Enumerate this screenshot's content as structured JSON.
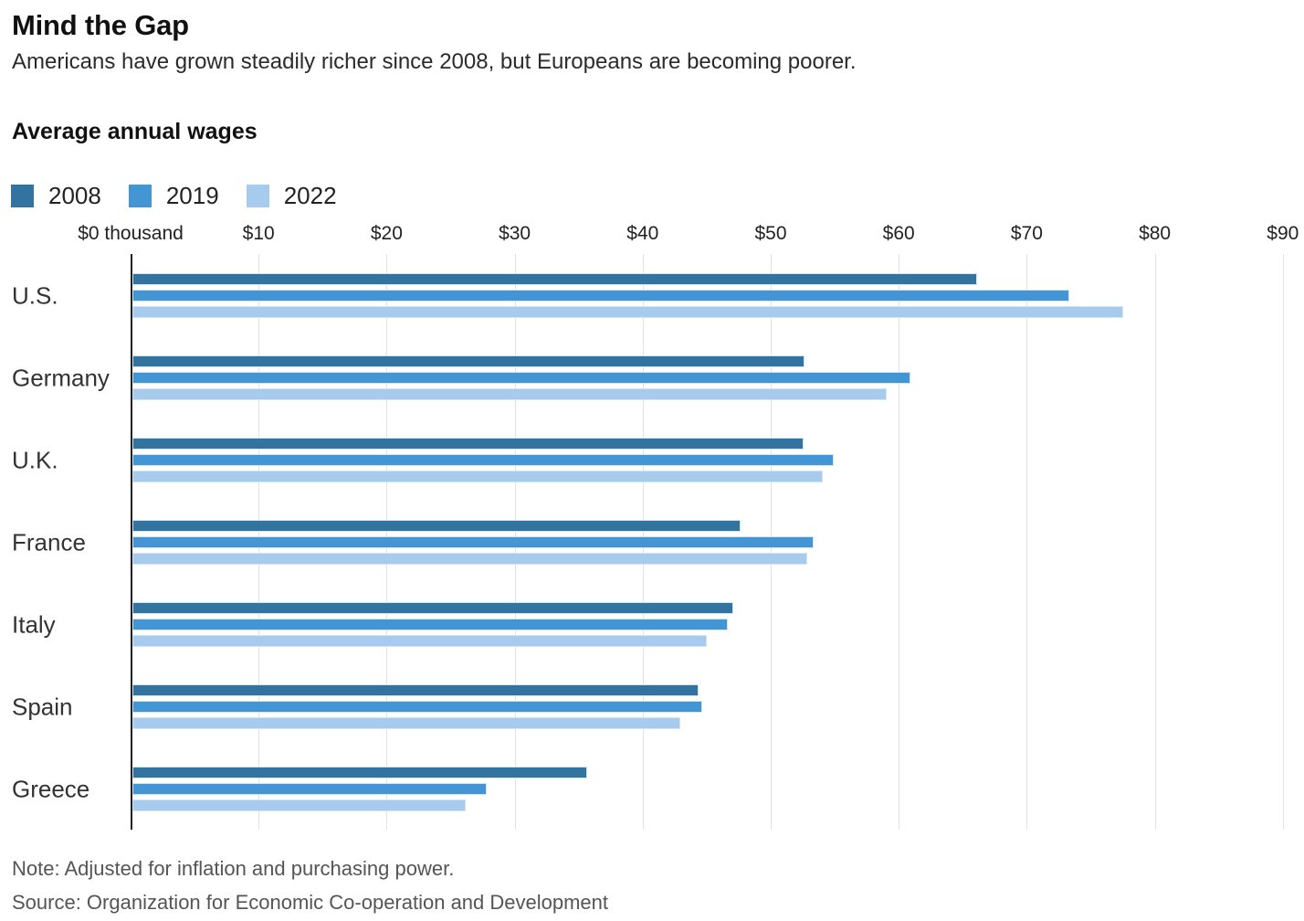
{
  "header": {
    "title": "Mind the Gap",
    "subtitle": "Americans have grown steadily richer since 2008, but Europeans are becoming poorer."
  },
  "section_label": "Average annual wages",
  "colors": {
    "series_2008": "#33739f",
    "series_2019": "#4495d3",
    "series_2022": "#a6cbec",
    "gridline": "#e2e2e2",
    "axis": "#222222"
  },
  "chart_data": {
    "type": "bar",
    "orientation": "horizontal",
    "title": "Average annual wages",
    "unit": "thousand US dollars",
    "categories": [
      "U.S.",
      "Germany",
      "U.K.",
      "France",
      "Italy",
      "Spain",
      "Greece"
    ],
    "series": [
      {
        "name": "2008",
        "color": "#33739f",
        "values": [
          66.0,
          52.5,
          52.4,
          47.5,
          46.9,
          44.2,
          35.5
        ]
      },
      {
        "name": "2019",
        "color": "#4495d3",
        "values": [
          73.2,
          60.8,
          54.8,
          53.2,
          46.5,
          44.5,
          27.7
        ]
      },
      {
        "name": "2022",
        "color": "#a6cbec",
        "values": [
          77.4,
          58.9,
          53.9,
          52.7,
          44.9,
          42.8,
          26.0
        ]
      }
    ],
    "x_axis": {
      "tick_labels": [
        "$0 thousand",
        "$10",
        "$20",
        "$30",
        "$40",
        "$50",
        "$60",
        "$70",
        "$80",
        "$90"
      ],
      "tick_values": [
        0,
        10,
        20,
        30,
        40,
        50,
        60,
        70,
        80,
        90
      ],
      "min": 0,
      "max": 90
    },
    "grid": "vertical",
    "legend_position": "top"
  },
  "footer": {
    "note": "Note: Adjusted for inflation and purchasing power.",
    "source": "Source: Organization for Economic Co-operation and Development"
  }
}
